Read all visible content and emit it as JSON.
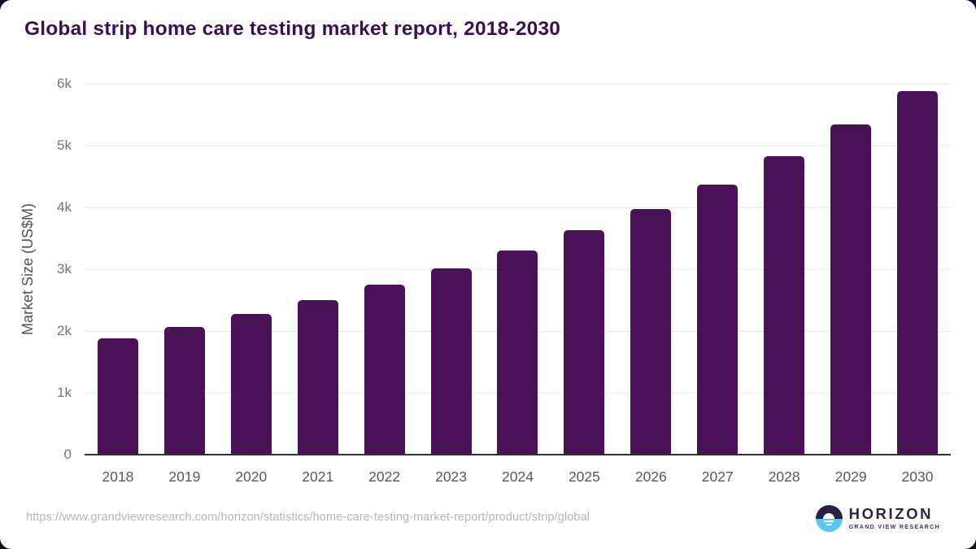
{
  "chart_data": {
    "type": "bar",
    "title": "Global strip home care testing market report, 2018-2030",
    "xlabel": "",
    "ylabel": "Market Size (US$M)",
    "categories": [
      "2018",
      "2019",
      "2020",
      "2021",
      "2022",
      "2023",
      "2024",
      "2025",
      "2026",
      "2027",
      "2028",
      "2029",
      "2030"
    ],
    "values": [
      1878,
      2063,
      2272,
      2495,
      2750,
      3010,
      3300,
      3635,
      3980,
      4370,
      4830,
      5345,
      5885
    ],
    "ylim": [
      0,
      6000
    ],
    "yticks": [
      {
        "label": "0",
        "value": 0
      },
      {
        "label": "1k",
        "value": 1000
      },
      {
        "label": "2k",
        "value": 2000
      },
      {
        "label": "3k",
        "value": 3000
      },
      {
        "label": "4k",
        "value": 4000
      },
      {
        "label": "5k",
        "value": 5000
      },
      {
        "label": "6k",
        "value": 6000
      }
    ],
    "grid": true,
    "legend": "none",
    "bar_color": "#4a1157"
  },
  "footer": {
    "source_url": "https://www.grandviewresearch.com/horizon/statistics/home-care-testing-market-report/product/strip/global",
    "logo": {
      "brand": "HORIZON",
      "subbrand": "GRAND VIEW RESEARCH"
    }
  },
  "colors": {
    "bar": "#4a1157",
    "title_text": "#3a104e",
    "axis_label": "#757575",
    "gridline": "#e7e7e7",
    "logo_navy": "#2a2045",
    "logo_blue": "#5bc6f3"
  }
}
